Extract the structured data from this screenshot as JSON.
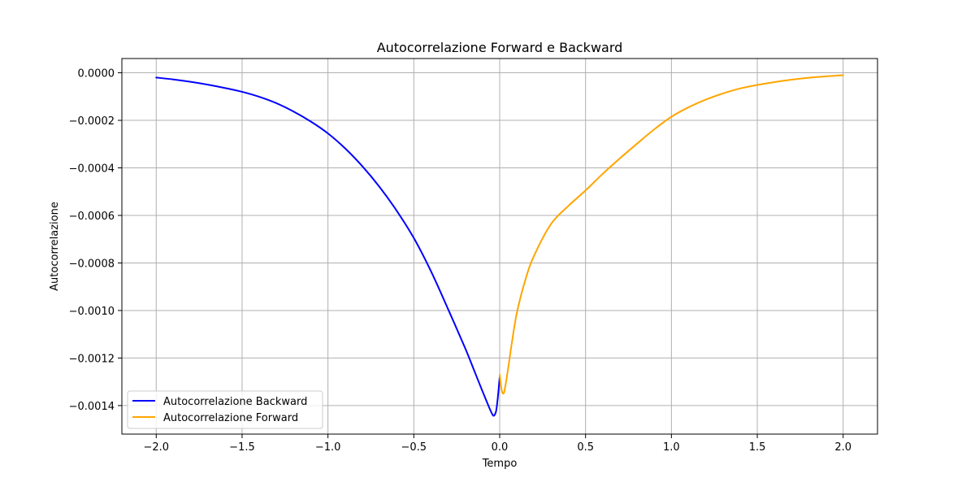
{
  "chart_data": {
    "type": "line",
    "title": "Autocorrelazione Forward e Backward",
    "xlabel": "Tempo",
    "ylabel": "Autocorrelazione",
    "xlim": [
      -2.2,
      2.2
    ],
    "ylim": [
      -0.00152,
      6e-05
    ],
    "x_ticks": [
      -2.0,
      -1.5,
      -1.0,
      -0.5,
      0.0,
      0.5,
      1.0,
      1.5,
      2.0
    ],
    "x_tick_labels": [
      "−2.0",
      "−1.5",
      "−1.0",
      "−0.5",
      "0.0",
      "0.5",
      "1.0",
      "1.5",
      "2.0"
    ],
    "y_ticks": [
      0.0,
      -0.0002,
      -0.0004,
      -0.0006,
      -0.0008,
      -0.001,
      -0.0012,
      -0.0014
    ],
    "y_tick_labels": [
      "0.0000",
      "−0.0002",
      "−0.0004",
      "−0.0006",
      "−0.0008",
      "−0.0010",
      "−0.0012",
      "−0.0014"
    ],
    "grid": true,
    "legend_position": "lower-left",
    "series": [
      {
        "name": "Autocorrelazione Backward",
        "color": "#0000ff",
        "x": [
          -2.0,
          -1.9,
          -1.8,
          -1.7,
          -1.6,
          -1.5,
          -1.4,
          -1.3,
          -1.2,
          -1.1,
          -1.0,
          -0.9,
          -0.8,
          -0.7,
          -0.6,
          -0.5,
          -0.4,
          -0.3,
          -0.2,
          -0.15,
          -0.1,
          -0.06,
          -0.04,
          -0.03,
          -0.02,
          -0.01,
          0.0
        ],
        "y": [
          -2e-05,
          -2.8e-05,
          -3.8e-05,
          -5e-05,
          -6.4e-05,
          -8e-05,
          -0.000101,
          -0.000128,
          -0.000163,
          -0.000205,
          -0.000255,
          -0.000318,
          -0.000393,
          -0.00048,
          -0.00058,
          -0.000695,
          -0.000835,
          -0.000995,
          -0.00116,
          -0.00125,
          -0.00134,
          -0.00141,
          -0.00144,
          -0.00144,
          -0.00142,
          -0.00136,
          -0.00128
        ]
      },
      {
        "name": "Autocorrelazione Forward",
        "color": "#ffa500",
        "x": [
          0.0,
          0.01,
          0.02,
          0.03,
          0.05,
          0.07,
          0.1,
          0.15,
          0.2,
          0.3,
          0.4,
          0.5,
          0.6,
          0.7,
          0.8,
          0.9,
          1.0,
          1.1,
          1.2,
          1.3,
          1.4,
          1.5,
          1.6,
          1.7,
          1.8,
          1.9,
          2.0
        ],
        "y": [
          -0.00127,
          -0.00133,
          -0.00135,
          -0.00133,
          -0.00124,
          -0.00114,
          -0.00101,
          -0.00087,
          -0.00077,
          -0.000635,
          -0.00056,
          -0.000495,
          -0.000425,
          -0.00036,
          -0.000298,
          -0.000238,
          -0.000185,
          -0.000145,
          -0.000113,
          -8.7e-05,
          -6.6e-05,
          -5.1e-05,
          -3.9e-05,
          -2.9e-05,
          -2.1e-05,
          -1.5e-05,
          -1e-05
        ]
      }
    ]
  }
}
